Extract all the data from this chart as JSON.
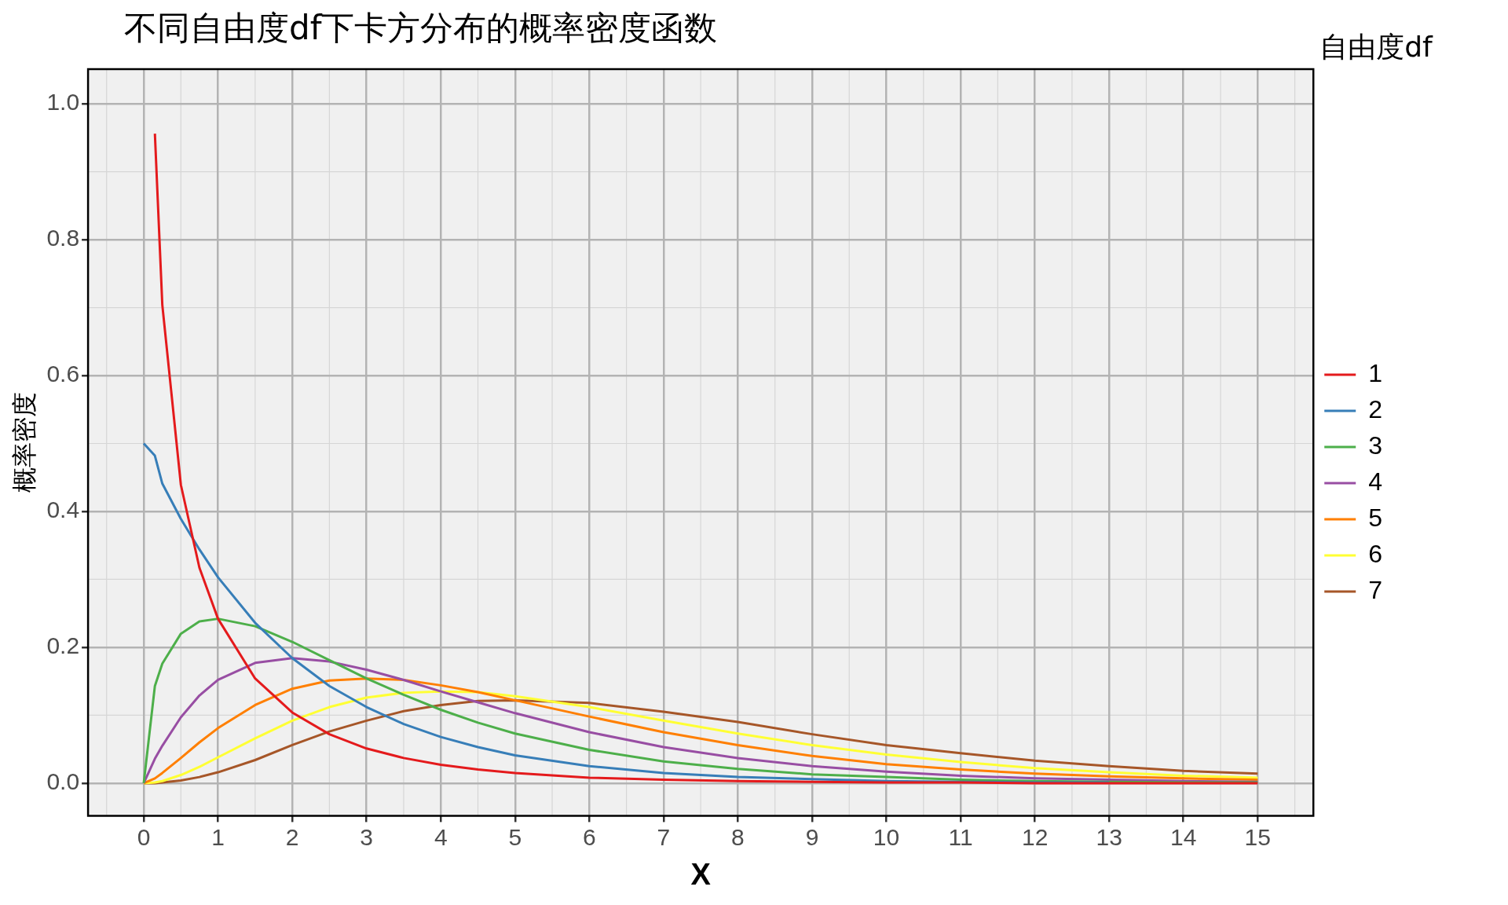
{
  "chart_data": {
    "type": "line",
    "title": "不同自由度df下卡方分布的概率密度函数",
    "xlabel": "X",
    "ylabel": "概率密度",
    "legend_title": "自由度df",
    "x": [
      0,
      0.15,
      0.25,
      0.5,
      0.75,
      1,
      1.5,
      2,
      2.5,
      3,
      3.5,
      4,
      4.5,
      5,
      6,
      7,
      8,
      9,
      10,
      11,
      12,
      13,
      14,
      15
    ],
    "series": [
      {
        "name": "1",
        "color": "#e41a1c",
        "values": [
          null,
          0.956,
          0.704,
          0.439,
          0.317,
          0.242,
          0.154,
          0.104,
          0.072,
          0.051,
          0.037,
          0.027,
          0.02,
          0.015,
          0.008,
          0.005,
          0.003,
          0.002,
          0.001,
          0.001,
          0.0,
          0.0,
          0.0,
          0.0
        ]
      },
      {
        "name": "2",
        "color": "#377eb8",
        "values": [
          0.5,
          0.482,
          0.441,
          0.389,
          0.344,
          0.303,
          0.236,
          0.184,
          0.143,
          0.112,
          0.087,
          0.068,
          0.053,
          0.041,
          0.025,
          0.015,
          0.009,
          0.006,
          0.003,
          0.002,
          0.001,
          0.001,
          null,
          null
        ]
      },
      {
        "name": "3",
        "color": "#4daf4a",
        "values": [
          0,
          0.143,
          0.176,
          0.22,
          0.238,
          0.242,
          0.231,
          0.208,
          0.181,
          0.154,
          0.13,
          0.108,
          0.089,
          0.073,
          0.049,
          0.032,
          0.021,
          0.013,
          0.009,
          0.005,
          0.003,
          0.002,
          0.001,
          0.001
        ]
      },
      {
        "name": "4",
        "color": "#984ea3",
        "values": [
          0,
          0.036,
          0.055,
          0.097,
          0.129,
          0.152,
          0.177,
          0.184,
          0.179,
          0.167,
          0.152,
          0.135,
          0.119,
          0.103,
          0.075,
          0.053,
          0.037,
          0.025,
          0.017,
          0.011,
          0.007,
          0.005,
          0.003,
          0.002
        ]
      },
      {
        "name": "5",
        "color": "#ff7f00",
        "values": [
          0,
          0.007,
          0.015,
          0.037,
          0.06,
          0.081,
          0.115,
          0.139,
          0.151,
          0.154,
          0.152,
          0.144,
          0.134,
          0.122,
          0.098,
          0.075,
          0.056,
          0.04,
          0.028,
          0.02,
          0.014,
          0.01,
          0.007,
          0.005
        ]
      },
      {
        "name": "6",
        "color": "#ffff33",
        "values": [
          0,
          0.001,
          0.003,
          0.012,
          0.024,
          0.038,
          0.066,
          0.092,
          0.112,
          0.126,
          0.133,
          0.135,
          0.134,
          0.128,
          0.112,
          0.092,
          0.073,
          0.056,
          0.042,
          0.031,
          0.022,
          0.016,
          0.011,
          0.008
        ]
      },
      {
        "name": "7",
        "color": "#a65628",
        "values": [
          0,
          0.0,
          0.001,
          0.004,
          0.009,
          0.016,
          0.034,
          0.056,
          0.076,
          0.092,
          0.106,
          0.115,
          0.121,
          0.122,
          0.118,
          0.105,
          0.09,
          0.072,
          0.056,
          0.044,
          0.033,
          0.025,
          0.018,
          0.014
        ]
      }
    ],
    "xlim": [
      -0.75,
      15.75
    ],
    "xticks": [
      0,
      1,
      2,
      3,
      4,
      5,
      6,
      7,
      8,
      9,
      10,
      11,
      12,
      13,
      14,
      15
    ],
    "ylim": [
      -0.048,
      1.051
    ],
    "yticks": [
      {
        "value": 0,
        "label": "0.0"
      },
      {
        "value": 0.2,
        "label": "0.2"
      },
      {
        "value": 0.4,
        "label": "0.4"
      },
      {
        "value": 0.6,
        "label": "0.6"
      },
      {
        "value": 0.8,
        "label": "0.8"
      },
      {
        "value": 1,
        "label": "1.0"
      }
    ],
    "grid": true,
    "legend": "right",
    "marker": "none",
    "line_style": "solid"
  }
}
